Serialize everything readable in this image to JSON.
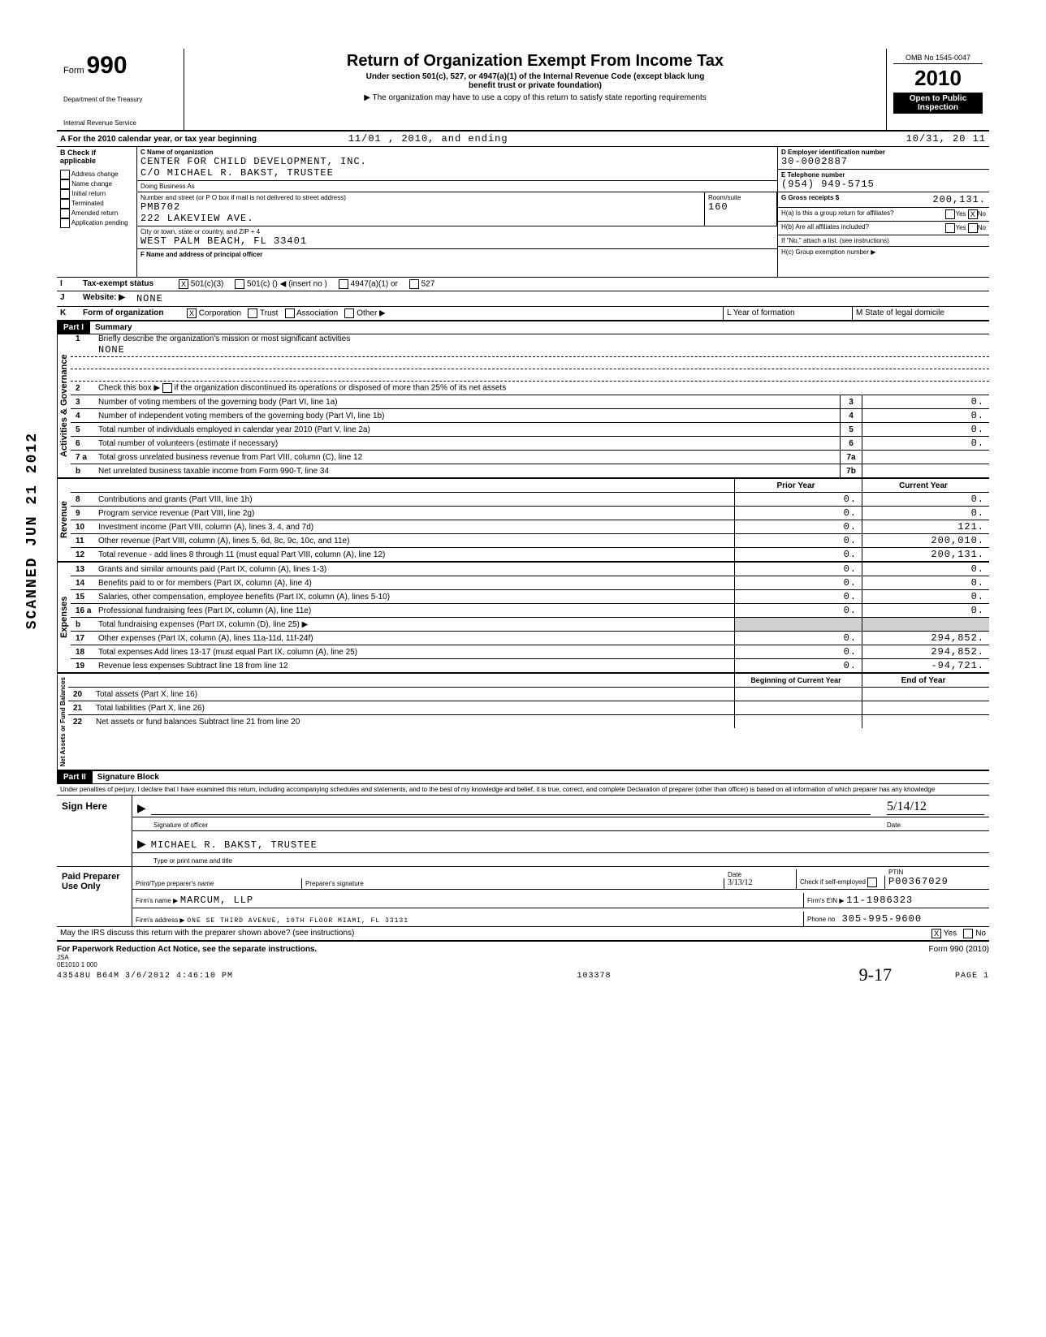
{
  "header": {
    "form_word": "Form",
    "form_number": "990",
    "dept1": "Department of the Treasury",
    "dept2": "Internal Revenue Service",
    "title": "Return of Organization Exempt From Income Tax",
    "subtitle1": "Under section 501(c), 527, or 4947(a)(1) of the Internal Revenue Code (except black lung",
    "subtitle2": "benefit trust or private foundation)",
    "subtitle3": "▶ The organization may have to use a copy of this return to satisfy state reporting requirements",
    "omb": "OMB No 1545-0047",
    "year": "2010",
    "open1": "Open to Public",
    "open2": "Inspection"
  },
  "lineA": {
    "label": "A For the 2010 calendar year, or tax year beginning",
    "begin": "11/01 , 2010, and ending",
    "end": "10/31, 20 11"
  },
  "sectionB": {
    "check_label": "B Check if applicable",
    "checks": [
      "Address change",
      "Name change",
      "Initial return",
      "Terminated",
      "Amended return",
      "Application pending"
    ],
    "c_label": "C Name of organization",
    "c_name": "CENTER FOR CHILD DEVELOPMENT, INC.",
    "c_co": "C/O MICHAEL R. BAKST, TRUSTEE",
    "dba_label": "Doing Business As",
    "addr_label": "Number and street (or P O box if mail is not delivered to street address)",
    "addr1": "PMB702",
    "addr2": "222 LAKEVIEW AVE.",
    "room_label": "Room/suite",
    "room": "160",
    "city_label": "City or town, state or country, and ZIP + 4",
    "city": "WEST PALM BEACH, FL 33401",
    "f_label": "F Name and address of principal officer",
    "d_label": "D Employer identification number",
    "d_val": "30-0002887",
    "e_label": "E Telephone number",
    "e_val": "(954) 949-5715",
    "g_label": "G Gross receipts $",
    "g_val": "200,131.",
    "ha_label": "H(a) Is this a group return for affiliates?",
    "hb_label": "H(b) Are all affiliates included?",
    "yes": "Yes",
    "no": "No",
    "h_note": "If \"No,\" attach a list. (see instructions)",
    "hc_label": "H(c) Group exemption number  ▶"
  },
  "lineI": {
    "label": "Tax-exempt status",
    "opt1": "501(c)(3)",
    "opt2": "501(c) (",
    "opt2b": ")  ◀   (insert no )",
    "opt3": "4947(a)(1) or",
    "opt4": "527"
  },
  "lineJ": {
    "label": "Website: ▶",
    "val": "NONE"
  },
  "lineK": {
    "label": "Form of organization",
    "opts": [
      "Corporation",
      "Trust",
      "Association",
      "Other ▶"
    ],
    "l_label": "L Year of formation",
    "m_label": "M State of legal domicile"
  },
  "partI": {
    "hdr": "Part I",
    "title": "Summary",
    "vlabel_gov": "Activities & Governance",
    "vlabel_rev": "Revenue",
    "vlabel_exp": "Expenses",
    "vlabel_net": "Net Assets or Fund Balances",
    "line1": "Briefly describe the organization's mission or most significant activities",
    "line1_val": "NONE",
    "line2": "Check this box ▶       if the organization discontinued its operations or disposed of more than 25% of its net assets",
    "lines_gov": [
      {
        "n": "3",
        "d": "Number of voting members of the governing body (Part VI, line 1a)",
        "box": "3",
        "v": "0."
      },
      {
        "n": "4",
        "d": "Number of independent voting members of the governing body (Part VI, line 1b)",
        "box": "4",
        "v": "0."
      },
      {
        "n": "5",
        "d": "Total number of individuals employed in calendar year 2010 (Part V, line 2a)",
        "box": "5",
        "v": "0."
      },
      {
        "n": "6",
        "d": "Total number of volunteers (estimate if necessary)",
        "box": "6",
        "v": "0."
      },
      {
        "n": "7 a",
        "d": "Total gross unrelated business revenue from Part VIII, column (C), line 12",
        "box": "7a",
        "v": ""
      },
      {
        "n": "b",
        "d": "Net unrelated business taxable income from Form 990-T, line 34",
        "box": "7b",
        "v": ""
      }
    ],
    "col_prior": "Prior Year",
    "col_curr": "Current Year",
    "lines_rev": [
      {
        "n": "8",
        "d": "Contributions and grants (Part VIII, line 1h)",
        "p": "0.",
        "c": "0."
      },
      {
        "n": "9",
        "d": "Program service revenue (Part VIII, line 2g)",
        "p": "0.",
        "c": "0."
      },
      {
        "n": "10",
        "d": "Investment income (Part VIII, column (A), lines 3, 4, and 7d)",
        "p": "0.",
        "c": "121."
      },
      {
        "n": "11",
        "d": "Other revenue (Part VIII, column (A), lines 5, 6d, 8c, 9c, 10c, and 11e)",
        "p": "0.",
        "c": "200,010."
      },
      {
        "n": "12",
        "d": "Total revenue - add lines 8 through 11 (must equal Part VIII, column (A), line 12)",
        "p": "0.",
        "c": "200,131."
      }
    ],
    "lines_exp": [
      {
        "n": "13",
        "d": "Grants and similar amounts paid (Part IX, column (A), lines 1-3)",
        "p": "0.",
        "c": "0."
      },
      {
        "n": "14",
        "d": "Benefits paid to or for members (Part IX, column (A), line 4)",
        "p": "0.",
        "c": "0."
      },
      {
        "n": "15",
        "d": "Salaries, other compensation, employee benefits (Part IX, column (A), lines 5-10)",
        "p": "0.",
        "c": "0."
      },
      {
        "n": "16 a",
        "d": "Professional fundraising fees (Part IX, column (A), line 11e)",
        "p": "0.",
        "c": "0."
      },
      {
        "n": "b",
        "d": "Total fundraising expenses (Part IX, column (D), line 25)  ▶",
        "p": "",
        "c": ""
      },
      {
        "n": "17",
        "d": "Other expenses (Part IX, column (A), lines 11a-11d, 11f-24f)",
        "p": "0.",
        "c": "294,852."
      },
      {
        "n": "18",
        "d": "Total expenses  Add lines 13-17 (must equal Part IX, column (A), line 25)",
        "p": "0.",
        "c": "294,852."
      },
      {
        "n": "19",
        "d": "Revenue less expenses  Subtract line 18 from line 12",
        "p": "0.",
        "c": "-94,721."
      }
    ],
    "col_beg": "Beginning of Current Year",
    "col_end": "End of Year",
    "lines_net": [
      {
        "n": "20",
        "d": "Total assets (Part X, line 16)",
        "p": "",
        "c": ""
      },
      {
        "n": "21",
        "d": "Total liabilities (Part X, line 26)",
        "p": "",
        "c": ""
      },
      {
        "n": "22",
        "d": "Net assets or fund balances  Subtract line 21 from line 20",
        "p": "",
        "c": ""
      }
    ]
  },
  "partII": {
    "hdr": "Part II",
    "title": "Signature Block",
    "perjury": "Under penalties of perjury, I declare that I have examined this return, including accompanying schedules and statements, and to the best of my knowledge and belief, it is true, correct, and complete  Declaration of preparer (other than officer) is based on all information of which preparer has any knowledge",
    "sign_here": "Sign Here",
    "sig_label": "Signature of officer",
    "date_label": "Date",
    "date_val": "5/14/12",
    "name": "MICHAEL R. BAKST, TRUSTEE",
    "name_label": "Type or print name and title",
    "paid": "Paid Preparer Use Only",
    "prep_name_label": "Print/Type preparer's name",
    "prep_sig_label": "Preparer's signature",
    "prep_date": "3/13/12",
    "check_if": "Check if self-employed",
    "ptin_label": "PTIN",
    "ptin": "P00367029",
    "firm_label": "Firm's name   ▶",
    "firm": "MARCUM, LLP",
    "ein_label": "Firm's EIN  ▶",
    "ein": "11-1986323",
    "addr_label": "Firm's address ▶",
    "addr": "ONE SE THIRD AVENUE, 10TH FLOOR MIAMI, FL 33131",
    "phone_label": "Phone no",
    "phone": "305-995-9600",
    "discuss": "May the IRS discuss this return with the preparer shown above? (see instructions)",
    "yes": "Yes",
    "no": "No"
  },
  "footer": {
    "pra": "For Paperwork Reduction Act Notice, see the separate instructions.",
    "form": "Form 990 (2010)",
    "jsa": "JSA",
    "code": "0E1010 1 000",
    "stamp": "43548U B64M 3/6/2012   4:46:10 PM",
    "num": "103378",
    "page": "PAGE 1",
    "hand": "9-17"
  },
  "side_stamp": "SCANNED JUN 21 2012"
}
